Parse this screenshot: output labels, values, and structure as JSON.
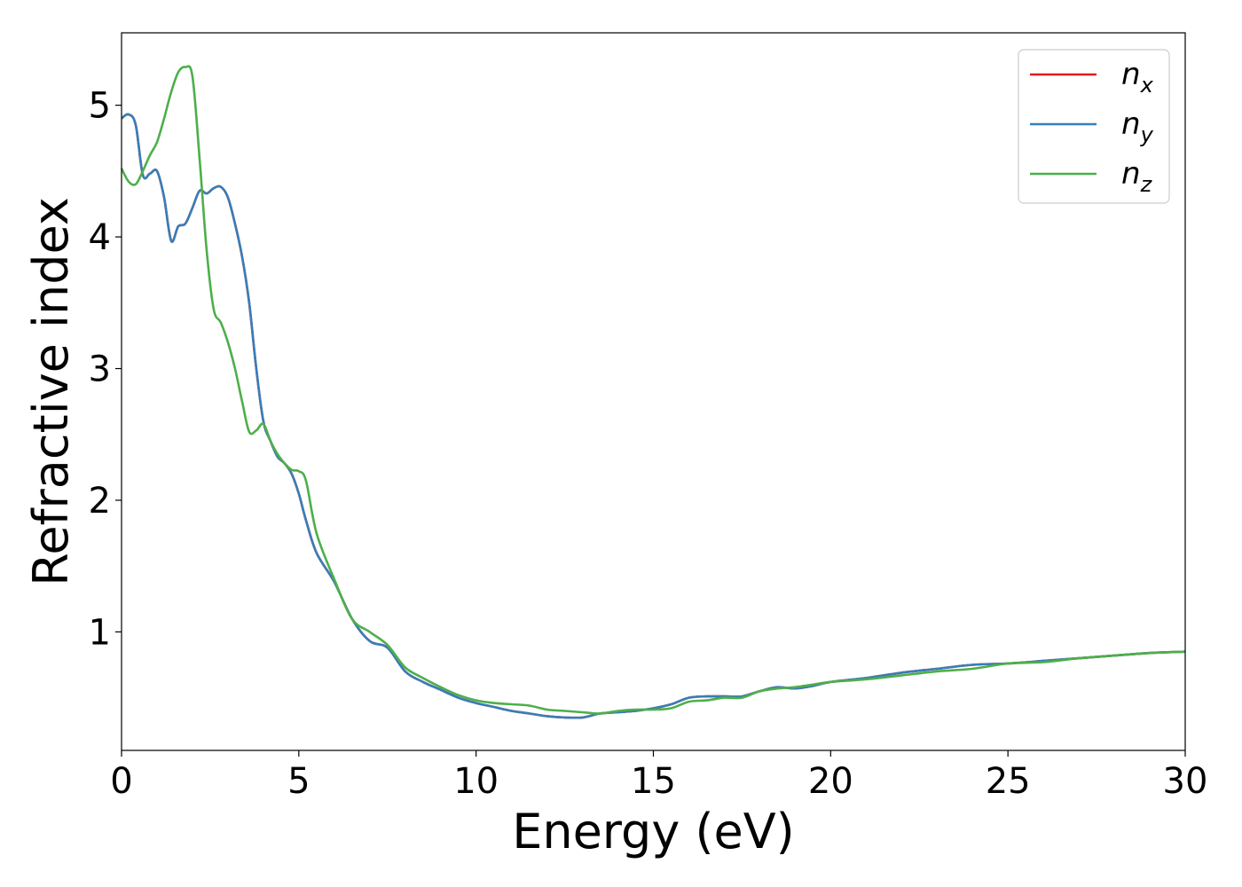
{
  "chart_data": {
    "type": "line",
    "xlabel": "Energy (eV)",
    "ylabel": "Refractive index",
    "xlim": [
      0,
      30
    ],
    "ylim": [
      0.1,
      5.55
    ],
    "xticks": [
      "0",
      "5",
      "10",
      "15",
      "20",
      "25",
      "30"
    ],
    "yticks": [
      "1",
      "2",
      "3",
      "4",
      "5"
    ],
    "grid": false,
    "legend": "top-right",
    "series": [
      {
        "name": "n_x",
        "symbol": "n",
        "subscript": "x",
        "color": "#e41a1c",
        "x": [
          0,
          0.2,
          0.4,
          0.6,
          0.8,
          1.0,
          1.2,
          1.4,
          1.6,
          1.8,
          2.0,
          2.2,
          2.4,
          2.6,
          2.8,
          3.0,
          3.2,
          3.4,
          3.6,
          3.8,
          4.0,
          4.2,
          4.4,
          4.6,
          4.8,
          5.0,
          5.2,
          5.5,
          6.0,
          6.5,
          7.0,
          7.5,
          8.0,
          8.5,
          9.0,
          9.5,
          10.0,
          10.5,
          11.0,
          11.5,
          12.0,
          12.5,
          13.0,
          13.5,
          14.0,
          14.5,
          15.0,
          15.5,
          16.0,
          16.5,
          17.0,
          17.5,
          18.0,
          18.5,
          19.0,
          19.5,
          20.0,
          21.0,
          22.0,
          23.0,
          24.0,
          25.0,
          26.0,
          27.0,
          28.0,
          29.0,
          30.0
        ],
        "values": [
          4.9,
          4.93,
          4.85,
          4.47,
          4.48,
          4.5,
          4.3,
          3.97,
          4.08,
          4.1,
          4.22,
          4.35,
          4.33,
          4.37,
          4.38,
          4.3,
          4.1,
          3.85,
          3.5,
          3.0,
          2.6,
          2.45,
          2.33,
          2.28,
          2.2,
          2.05,
          1.85,
          1.6,
          1.38,
          1.1,
          0.93,
          0.88,
          0.7,
          0.62,
          0.56,
          0.5,
          0.46,
          0.43,
          0.4,
          0.38,
          0.36,
          0.35,
          0.35,
          0.38,
          0.39,
          0.4,
          0.42,
          0.45,
          0.5,
          0.51,
          0.51,
          0.51,
          0.55,
          0.58,
          0.57,
          0.59,
          0.62,
          0.65,
          0.69,
          0.72,
          0.75,
          0.76,
          0.78,
          0.8,
          0.82,
          0.84,
          0.85
        ]
      },
      {
        "name": "n_y",
        "symbol": "n",
        "subscript": "y",
        "color": "#377eb8",
        "x": [
          0,
          0.2,
          0.4,
          0.6,
          0.8,
          1.0,
          1.2,
          1.4,
          1.6,
          1.8,
          2.0,
          2.2,
          2.4,
          2.6,
          2.8,
          3.0,
          3.2,
          3.4,
          3.6,
          3.8,
          4.0,
          4.2,
          4.4,
          4.6,
          4.8,
          5.0,
          5.2,
          5.5,
          6.0,
          6.5,
          7.0,
          7.5,
          8.0,
          8.5,
          9.0,
          9.5,
          10.0,
          10.5,
          11.0,
          11.5,
          12.0,
          12.5,
          13.0,
          13.5,
          14.0,
          14.5,
          15.0,
          15.5,
          16.0,
          16.5,
          17.0,
          17.5,
          18.0,
          18.5,
          19.0,
          19.5,
          20.0,
          21.0,
          22.0,
          23.0,
          24.0,
          25.0,
          26.0,
          27.0,
          28.0,
          29.0,
          30.0
        ],
        "values": [
          4.9,
          4.93,
          4.85,
          4.47,
          4.48,
          4.5,
          4.3,
          3.97,
          4.08,
          4.1,
          4.22,
          4.35,
          4.33,
          4.37,
          4.38,
          4.3,
          4.1,
          3.85,
          3.5,
          3.0,
          2.6,
          2.45,
          2.33,
          2.28,
          2.2,
          2.05,
          1.85,
          1.6,
          1.38,
          1.1,
          0.93,
          0.88,
          0.7,
          0.62,
          0.56,
          0.5,
          0.46,
          0.43,
          0.4,
          0.38,
          0.36,
          0.35,
          0.35,
          0.38,
          0.39,
          0.4,
          0.42,
          0.45,
          0.5,
          0.51,
          0.51,
          0.51,
          0.55,
          0.58,
          0.57,
          0.59,
          0.62,
          0.65,
          0.69,
          0.72,
          0.75,
          0.76,
          0.78,
          0.8,
          0.82,
          0.84,
          0.85
        ]
      },
      {
        "name": "n_z",
        "symbol": "n",
        "subscript": "z",
        "color": "#4daf4a",
        "x": [
          0,
          0.2,
          0.4,
          0.6,
          0.8,
          1.0,
          1.2,
          1.4,
          1.6,
          1.8,
          2.0,
          2.2,
          2.4,
          2.6,
          2.8,
          3.0,
          3.2,
          3.4,
          3.6,
          3.8,
          4.0,
          4.2,
          4.4,
          4.6,
          4.8,
          5.0,
          5.2,
          5.5,
          6.0,
          6.5,
          7.0,
          7.5,
          8.0,
          8.5,
          9.0,
          9.5,
          10.0,
          10.5,
          11.0,
          11.5,
          12.0,
          12.5,
          13.0,
          13.5,
          14.0,
          14.5,
          15.0,
          15.5,
          16.0,
          16.5,
          17.0,
          17.5,
          18.0,
          18.5,
          19.0,
          19.5,
          20.0,
          21.0,
          22.0,
          23.0,
          24.0,
          25.0,
          26.0,
          27.0,
          28.0,
          29.0,
          30.0
        ],
        "values": [
          4.52,
          4.42,
          4.4,
          4.5,
          4.62,
          4.72,
          4.9,
          5.1,
          5.25,
          5.29,
          5.22,
          4.6,
          3.9,
          3.45,
          3.35,
          3.2,
          3.0,
          2.75,
          2.52,
          2.53,
          2.58,
          2.45,
          2.35,
          2.28,
          2.23,
          2.22,
          2.15,
          1.75,
          1.4,
          1.1,
          1.0,
          0.9,
          0.73,
          0.65,
          0.58,
          0.52,
          0.48,
          0.46,
          0.45,
          0.44,
          0.41,
          0.4,
          0.39,
          0.38,
          0.4,
          0.41,
          0.41,
          0.42,
          0.47,
          0.48,
          0.5,
          0.5,
          0.55,
          0.57,
          0.58,
          0.6,
          0.62,
          0.64,
          0.67,
          0.7,
          0.72,
          0.76,
          0.77,
          0.8,
          0.82,
          0.84,
          0.85
        ]
      }
    ]
  }
}
